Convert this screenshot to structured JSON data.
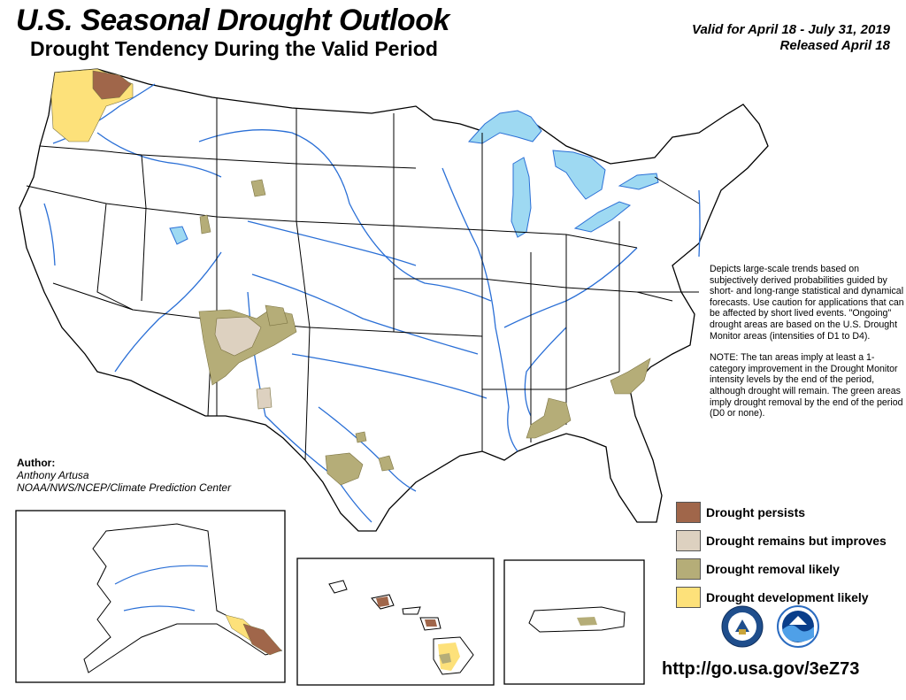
{
  "title": "U.S. Seasonal Drought Outlook",
  "subtitle": "Drought Tendency During the Valid Period",
  "valid_period": "Valid for April 18 - July 31, 2019",
  "released": "Released April 18",
  "description": [
    "Depicts large-scale trends based on subjectively derived probabilities guided by short- and long-range statistical and dynamical forecasts. Use caution for applications that can be affected by short lived events. \"Ongoing\" drought areas are based on the U.S. Drought Monitor areas (intensities of D1 to D4).",
    "NOTE: The tan areas imply at least a 1-category improvement in the Drought Monitor intensity levels by the end of the period, although drought will remain. The green areas imply drought removal by the end of the period (D0 or none)."
  ],
  "author": {
    "label": "Author:",
    "name": "Anthony Artusa",
    "org": "NOAA/NWS/NCEP/Climate Prediction Center"
  },
  "legend": [
    {
      "label": "Drought persists",
      "color": "#a0664a"
    },
    {
      "label": "Drought remains but improves",
      "color": "#ddd1c0"
    },
    {
      "label": "Drought removal likely",
      "color": "#b5ad78"
    },
    {
      "label": "Drought development likely",
      "color": "#fde17a"
    }
  ],
  "url": "http://go.usa.gov/3eZ73",
  "logos": [
    {
      "name": "doc-seal-icon",
      "color": "#1f4e8c"
    },
    {
      "name": "noaa-logo-icon",
      "color": "#2a6bc0"
    }
  ],
  "colors": {
    "water": "#9ed9f2",
    "river": "#2a6fd6",
    "border": "#000000"
  }
}
